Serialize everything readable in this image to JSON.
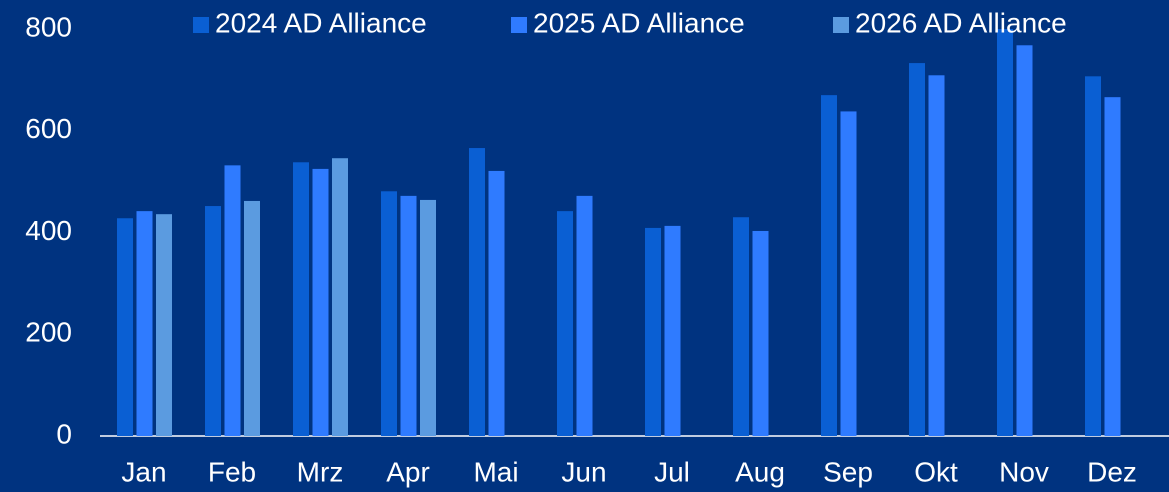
{
  "chart_data": {
    "type": "bar",
    "categories": [
      "Jan",
      "Feb",
      "Mrz",
      "Apr",
      "Mai",
      "Jun",
      "Jul",
      "Aug",
      "Sep",
      "Okt",
      "Nov",
      "Dez"
    ],
    "series": [
      {
        "name": "2024 AD Alliance",
        "color": "#0a5fd3",
        "values": [
          428,
          452,
          538,
          481,
          566,
          442,
          409,
          430,
          670,
          733,
          800,
          707
        ]
      },
      {
        "name": "2025 AD Alliance",
        "color": "#2f7bff",
        "values": [
          442,
          532,
          525,
          472,
          521,
          472,
          413,
          403,
          638,
          709,
          768,
          666
        ]
      },
      {
        "name": "2026 AD Alliance",
        "color": "#5b9be0",
        "values": [
          436,
          462,
          546,
          464,
          null,
          null,
          null,
          null,
          null,
          null,
          null,
          null
        ]
      }
    ],
    "ylim": [
      0,
      800
    ],
    "yticks": [
      0,
      200,
      400,
      600,
      800
    ],
    "grid": false
  }
}
